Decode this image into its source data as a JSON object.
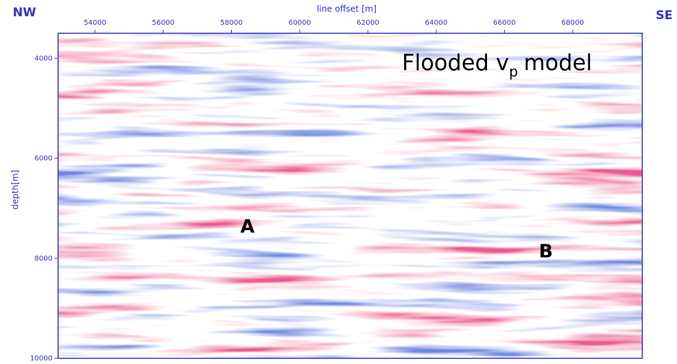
{
  "chart_data": {
    "type": "seismic",
    "title_parts": [
      "Flooded v",
      "p",
      "model"
    ],
    "xlabel": "line offset [m]",
    "ylabel": "depth[m]",
    "corner_labels": [
      "NW",
      "SE"
    ],
    "annotations": [
      "A",
      "B"
    ],
    "xlim": [
      52920,
      70040
    ],
    "xticks": [
      54000,
      56000,
      58000,
      60000,
      62000,
      64000,
      66000,
      68000
    ],
    "ylim": [
      3500,
      10000
    ],
    "yticks": [
      4000,
      6000,
      8000,
      10000
    ],
    "axis_color": "#3333cc"
  }
}
